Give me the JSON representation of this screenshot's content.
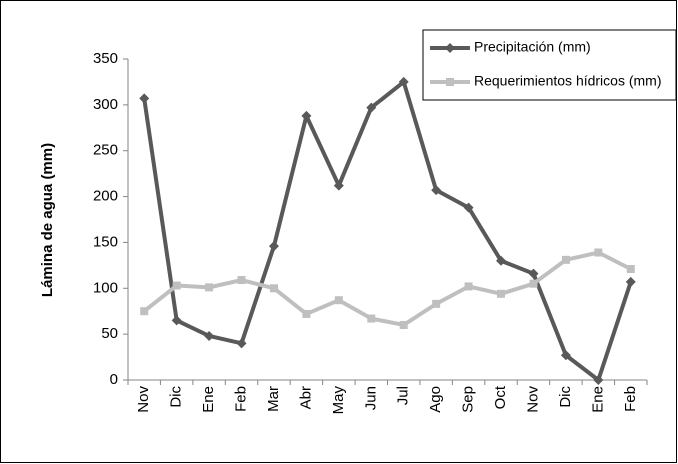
{
  "chart_data": {
    "type": "line",
    "y_label": "Lámina de agua (mm)",
    "categories": [
      "Nov",
      "Dic",
      "Ene",
      "Feb",
      "Mar",
      "Abr",
      "May",
      "Jun",
      "Jul",
      "Ago",
      "Sep",
      "Oct",
      "Nov",
      "Dic",
      "Ene",
      "Feb"
    ],
    "series": [
      {
        "name": "Precipitación (mm)",
        "color": "#595959",
        "marker": "diamond",
        "values": [
          307,
          65,
          48,
          40,
          146,
          288,
          212,
          297,
          325,
          207,
          188,
          130,
          116,
          27,
          0,
          107
        ]
      },
      {
        "name": "Requerimientos hídricos (mm)",
        "color": "#bfbfbf",
        "marker": "square",
        "values": [
          75,
          103,
          101,
          109,
          100,
          72,
          87,
          67,
          60,
          83,
          102,
          94,
          105,
          131,
          139,
          121
        ]
      }
    ],
    "ylim": [
      0,
      350
    ],
    "yticks": [
      0,
      50,
      100,
      150,
      200,
      250,
      300,
      350
    ],
    "grid": false,
    "legend": "top-right"
  }
}
